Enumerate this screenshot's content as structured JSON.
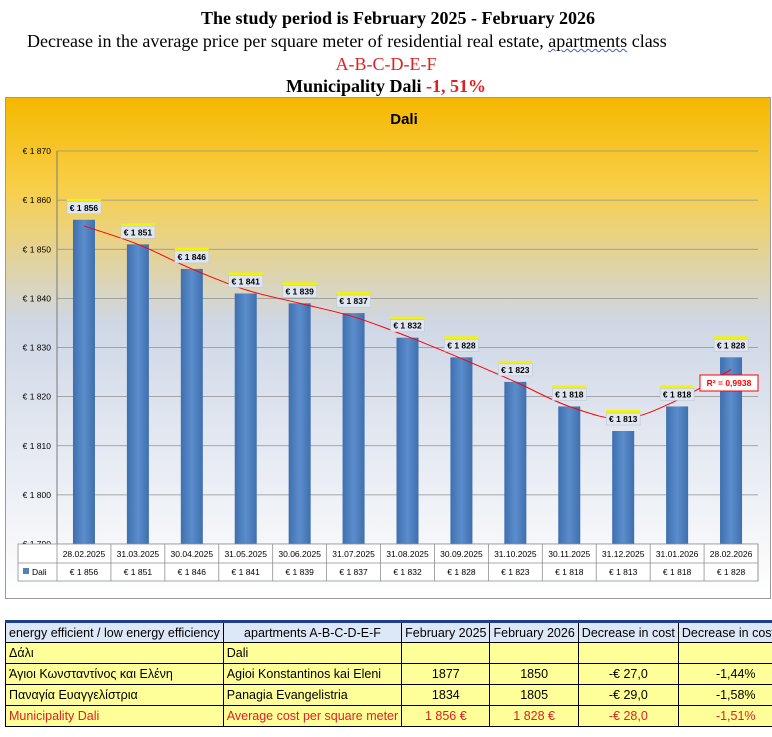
{
  "header": {
    "line1": "The study period is February 2025 - February 2026",
    "line2_pre": "Decrease in the average price per square meter of residential real estate, ",
    "line2_underlined": "apartments",
    "line2_post": " class",
    "line3": "A-B-C-D-E-F",
    "line4_pre": "Municipality Dali ",
    "line4_value": "-1, 51%"
  },
  "chart_data": {
    "type": "bar",
    "title": "Dali",
    "categories": [
      "28.02.2025",
      "31.03.2025",
      "30.04.2025",
      "31.05.2025",
      "30.06.2025",
      "31.07.2025",
      "31.08.2025",
      "30.09.2025",
      "31.10.2025",
      "30.11.2025",
      "31.12.2025",
      "31.01.2026",
      "28.02.2026"
    ],
    "series": [
      {
        "name": "Dali",
        "values": [
          1856,
          1851,
          1846,
          1841,
          1839,
          1837,
          1832,
          1828,
          1823,
          1818,
          1813,
          1818,
          1828
        ],
        "color": "#4f81bd"
      }
    ],
    "data_labels": [
      "€ 1 856",
      "€ 1 851",
      "€ 1 846",
      "€ 1 841",
      "€ 1 839",
      "€ 1 837",
      "€ 1 832",
      "€ 1 828",
      "€ 1 823",
      "€ 1 818",
      "€ 1 813",
      "€ 1 818",
      "€ 1 828"
    ],
    "ylim": [
      1790,
      1870
    ],
    "yticks": [
      1790,
      1800,
      1810,
      1820,
      1830,
      1840,
      1850,
      1860,
      1870
    ],
    "ytick_labels": [
      "€ 1 790",
      "€ 1 800",
      "€ 1 810",
      "€ 1 820",
      "€ 1 830",
      "€ 1 840",
      "€ 1 850",
      "€ 1 860",
      "€ 1 870"
    ],
    "trendline": {
      "type": "polynomial",
      "color": "#ff0000",
      "r2_label": "R² = 0,9938"
    },
    "grid": true,
    "data_table": true,
    "background": {
      "top": "#f5b800",
      "bottom": "#ffffff"
    }
  },
  "table": {
    "headers": [
      "energy efficient / low energy efficiency",
      "apartments A-B-C-D-E-F",
      "February 2025",
      "February 2026",
      "Decrease in cost",
      "Decrease in cost  %"
    ],
    "rows": [
      [
        "Δάλι",
        "Dali",
        "",
        "",
        "",
        ""
      ],
      [
        "Άγιοι Κωνσταντίνος και Ελένη",
        "Agioi Konstantinos kai Eleni",
        "1877",
        "1850",
        "-€ 27,0",
        "-1,44%"
      ],
      [
        "Παναγία Ευαγγελίστρια",
        "Panagia Evangelistria",
        "1834",
        "1805",
        "-€ 29,0",
        "-1,58%"
      ],
      [
        "Municipality Dali",
        "Average cost per square meter",
        "1 856 €",
        "1 828 €",
        "-€ 28,0",
        "-1,51%"
      ]
    ]
  }
}
